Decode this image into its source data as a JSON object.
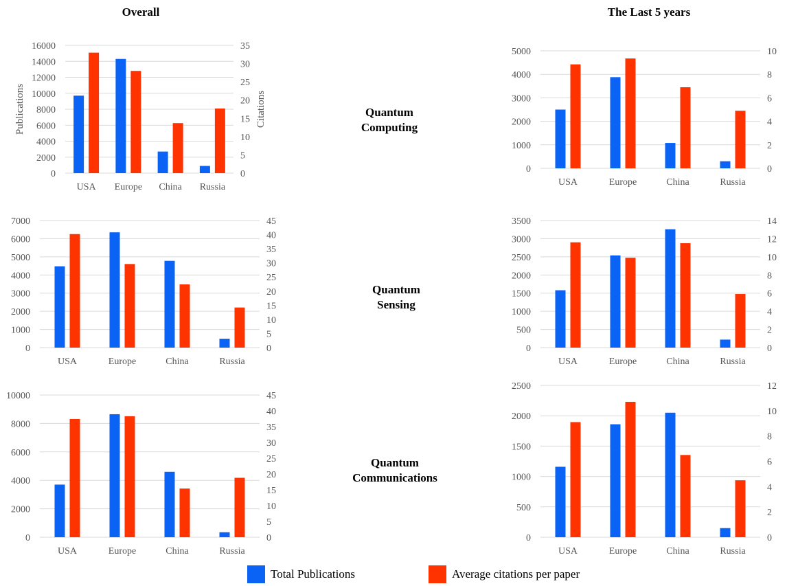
{
  "colors": {
    "publications": "#0b63f6",
    "citations": "#ff3300",
    "grid": "#d9d9d9",
    "tick": "#555555"
  },
  "columns": {
    "left": "Overall",
    "right": "The Last 5 years"
  },
  "rows": [
    {
      "line1": "Quantum",
      "line2": "Computing"
    },
    {
      "line1": "Quantum",
      "line2": "Sensing"
    },
    {
      "line1": "Quantum",
      "line2": "Communications"
    }
  ],
  "legend": {
    "publications": "Total Publications",
    "citations": "Average citations per paper"
  },
  "chart_data": [
    {
      "type": "bar",
      "id": "computing-overall",
      "categories": [
        "USA",
        "Europe",
        "China",
        "Russia"
      ],
      "ylabel": "Publications",
      "y2label": "Citations",
      "ylim": [
        0,
        16000
      ],
      "yticks": [
        0,
        2000,
        4000,
        6000,
        8000,
        10000,
        12000,
        14000,
        16000
      ],
      "y2lim": [
        0,
        35
      ],
      "y2ticks": [
        0,
        5,
        10,
        15,
        20,
        25,
        30,
        35
      ],
      "series": [
        {
          "name": "Total Publications",
          "axis": "left",
          "values": [
            9700,
            14300,
            2700,
            900
          ]
        },
        {
          "name": "Average citations per paper",
          "axis": "right",
          "values": [
            33,
            28,
            13.7,
            17.7
          ]
        }
      ]
    },
    {
      "type": "bar",
      "id": "computing-last5",
      "categories": [
        "USA",
        "Europe",
        "China",
        "Russia"
      ],
      "ylabel": "",
      "y2label": "",
      "ylim": [
        0,
        5000
      ],
      "yticks": [
        0,
        1000,
        2000,
        3000,
        4000,
        5000
      ],
      "y2lim": [
        0,
        10
      ],
      "y2ticks": [
        0,
        2,
        4,
        6,
        8,
        10
      ],
      "series": [
        {
          "name": "Total Publications",
          "axis": "left",
          "values": [
            2500,
            3880,
            1080,
            300
          ]
        },
        {
          "name": "Average citations per paper",
          "axis": "right",
          "values": [
            8.85,
            9.35,
            6.9,
            4.9
          ]
        }
      ]
    },
    {
      "type": "bar",
      "id": "sensing-overall",
      "categories": [
        "USA",
        "Europe",
        "China",
        "Russia"
      ],
      "ylabel": "",
      "y2label": "",
      "ylim": [
        0,
        7000
      ],
      "yticks": [
        0,
        1000,
        2000,
        3000,
        4000,
        5000,
        6000,
        7000
      ],
      "y2lim": [
        0,
        45
      ],
      "y2ticks": [
        0,
        5,
        10,
        15,
        20,
        25,
        30,
        35,
        40,
        45
      ],
      "series": [
        {
          "name": "Total Publications",
          "axis": "left",
          "values": [
            4480,
            6350,
            4780,
            490
          ]
        },
        {
          "name": "Average citations per paper",
          "axis": "right",
          "values": [
            40.2,
            29.6,
            22.4,
            14.2
          ]
        }
      ]
    },
    {
      "type": "bar",
      "id": "sensing-last5",
      "categories": [
        "USA",
        "Europe",
        "China",
        "Russia"
      ],
      "ylabel": "",
      "y2label": "",
      "ylim": [
        0,
        3500
      ],
      "yticks": [
        0,
        500,
        1000,
        1500,
        2000,
        2500,
        3000,
        3500
      ],
      "y2lim": [
        0,
        14
      ],
      "y2ticks": [
        0,
        2,
        4,
        6,
        8,
        10,
        12,
        14
      ],
      "series": [
        {
          "name": "Total Publications",
          "axis": "left",
          "values": [
            1580,
            2540,
            3260,
            220
          ]
        },
        {
          "name": "Average citations per paper",
          "axis": "right",
          "values": [
            11.6,
            9.9,
            11.5,
            5.9
          ]
        }
      ]
    },
    {
      "type": "bar",
      "id": "communications-overall",
      "categories": [
        "USA",
        "Europe",
        "China",
        "Russia"
      ],
      "ylabel": "",
      "y2label": "",
      "ylim": [
        0,
        10000
      ],
      "yticks": [
        0,
        2000,
        4000,
        6000,
        8000,
        10000
      ],
      "y2lim": [
        0,
        45
      ],
      "y2ticks": [
        0,
        5,
        10,
        15,
        20,
        25,
        30,
        35,
        40,
        45
      ],
      "series": [
        {
          "name": "Total Publications",
          "axis": "left",
          "values": [
            3700,
            8650,
            4600,
            350
          ]
        },
        {
          "name": "Average citations per paper",
          "axis": "right",
          "values": [
            37.4,
            38.3,
            15.4,
            18.8
          ]
        }
      ]
    },
    {
      "type": "bar",
      "id": "communications-last5",
      "categories": [
        "USA",
        "Europe",
        "China",
        "Russia"
      ],
      "ylabel": "",
      "y2label": "",
      "ylim": [
        0,
        2500
      ],
      "yticks": [
        0,
        500,
        1000,
        1500,
        2000,
        2500
      ],
      "y2lim": [
        0,
        12
      ],
      "y2ticks": [
        0,
        2,
        4,
        6,
        8,
        10,
        12
      ],
      "series": [
        {
          "name": "Total Publications",
          "axis": "left",
          "values": [
            1160,
            1860,
            2050,
            150
          ]
        },
        {
          "name": "Average citations per paper",
          "axis": "right",
          "values": [
            9.1,
            10.7,
            6.5,
            4.5
          ]
        }
      ]
    }
  ]
}
